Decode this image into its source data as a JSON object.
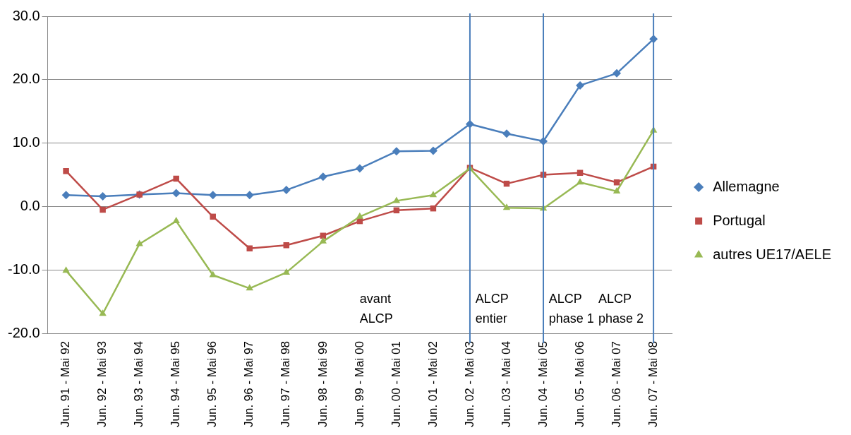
{
  "chart_data": {
    "type": "line",
    "categories": [
      "Jun. 91 - Mai 92",
      "Jun. 92 - Mai 93",
      "Jun. 93 - Mai 94",
      "Jun. 94 - Mai 95",
      "Jun. 95 - Mai 96",
      "Jun. 96 - Mai 97",
      "Jun. 97 - Mai 98",
      "Jun. 98 - Mai 99",
      "Jun. 99 - Mai 00",
      "Jun. 00 - Mai 01",
      "Jun. 01 - Mai 02",
      "Jun. 02 - Mai 03",
      "Jun. 03 - Mai 04",
      "Jun. 04 - Mai 05",
      "Jun. 05 - Mai 06",
      "Jun. 06 - Mai 07",
      "Jun. 07 - Mai 08"
    ],
    "series": [
      {
        "name": "Allemagne",
        "color": "#4a7ebb",
        "marker": "diamond",
        "values": [
          1.8,
          1.6,
          1.9,
          2.1,
          1.8,
          1.8,
          2.6,
          4.7,
          6.0,
          8.7,
          8.8,
          13.0,
          11.5,
          10.3,
          19.1,
          21.0,
          26.4
        ]
      },
      {
        "name": "Portugal",
        "color": "#be4b48",
        "marker": "square",
        "values": [
          5.6,
          -0.5,
          1.9,
          4.4,
          -1.6,
          -6.6,
          -6.1,
          -4.6,
          -2.3,
          -0.6,
          -0.3,
          6.1,
          3.6,
          5.0,
          5.3,
          3.8,
          6.3
        ]
      },
      {
        "name": "autres UE17/AELE",
        "color": "#98b954",
        "marker": "triangle",
        "values": [
          -10.1,
          -16.9,
          -5.9,
          -2.3,
          -10.8,
          -12.9,
          -10.4,
          -5.5,
          -1.6,
          0.9,
          1.8,
          6.0,
          -0.2,
          -0.3,
          3.8,
          2.4,
          12.0
        ]
      }
    ],
    "ylim": [
      -20,
      30
    ],
    "yticks": [
      {
        "value": -20,
        "label": "-20.0"
      },
      {
        "value": -10,
        "label": "-10.0"
      },
      {
        "value": 0,
        "label": "0.0"
      },
      {
        "value": 10,
        "label": "10.0"
      },
      {
        "value": 20,
        "label": "20.0"
      },
      {
        "value": 30,
        "label": "30.0"
      }
    ],
    "grid": "y",
    "legend": "right",
    "ref_lines": [
      {
        "axis": "x",
        "value": "Jun. 02 - Mai 03",
        "color": "#4a7ebb"
      },
      {
        "axis": "x",
        "value": "Jun. 04 - Mai 05",
        "color": "#4a7ebb"
      },
      {
        "axis": "x",
        "value": "Jun. 07 - Mai 08",
        "color": "#4a7ebb"
      }
    ],
    "annotations": [
      "avant ALCP",
      "ALCP entier",
      "ALCP phase 1",
      "ALCP phase 2"
    ]
  }
}
